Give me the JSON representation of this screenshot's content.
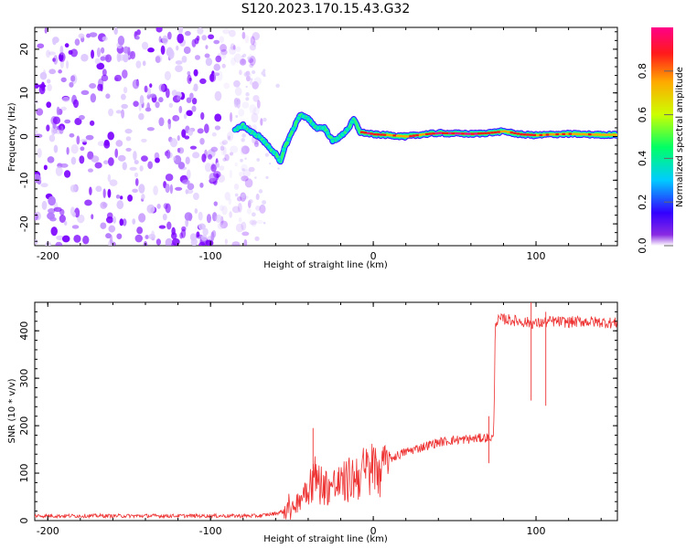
{
  "title": "S120.2023.170.15.43.G32",
  "chart_data": [
    {
      "type": "heatmap",
      "xlabel": "Height of straight line (km)",
      "ylabel": "Frequency (Hz)",
      "xlim": [
        -208,
        150
      ],
      "ylim": [
        -25,
        25
      ],
      "x_ticks": [
        -200,
        -100,
        0,
        100
      ],
      "y_ticks": [
        -20,
        -10,
        0,
        10,
        20
      ],
      "grid": false,
      "colorbar": {
        "label": "Normalized spectral amplitude",
        "range": [
          0.0,
          1.0
        ],
        "ticks": [
          0.0,
          0.2,
          0.4,
          0.6,
          0.8
        ],
        "tick_labels": [
          "0.0",
          "0.2",
          "0.4",
          "0.6",
          "0.8"
        ],
        "colors": [
          "#ffffff",
          "#7b00ff",
          "#0000ff",
          "#00ffff",
          "#00ff00",
          "#ffff00",
          "#ff8000",
          "#ff0000",
          "#ff0080"
        ]
      },
      "ridge": {
        "description_x": [
          -85,
          -80,
          -75,
          -70,
          -65,
          -60,
          -57,
          -55,
          -50,
          -45,
          -40,
          -35,
          -30,
          -25,
          -20,
          -15,
          -12,
          -8,
          0,
          10,
          20,
          30,
          40,
          50,
          60,
          70,
          80,
          90,
          100,
          110,
          120,
          130,
          140,
          150
        ],
        "frequency": [
          1.5,
          2.5,
          1,
          0,
          -2,
          -4,
          -6,
          -3,
          1,
          5,
          4,
          2,
          2,
          -1,
          0,
          2,
          4,
          1,
          0.5,
          0.3,
          0,
          0.5,
          0.8,
          0.7,
          0.6,
          0.8,
          1.2,
          0.5,
          0.3,
          0.5,
          0.6,
          0.5,
          0.4,
          0.4
        ],
        "peak_amplitude": [
          0.3,
          0.35,
          0.3,
          0.3,
          0.3,
          0.35,
          0.4,
          0.35,
          0.3,
          0.4,
          0.4,
          0.3,
          0.3,
          0.3,
          0.3,
          0.4,
          0.5,
          0.8,
          0.9,
          0.75,
          0.7,
          0.8,
          0.85,
          0.9,
          0.9,
          0.85,
          0.75,
          0.8,
          0.8,
          0.75,
          0.75,
          0.7,
          0.7,
          0.7
        ]
      },
      "noise_region": {
        "x_from": -208,
        "x_to": -80,
        "amplitude": [
          0.0,
          0.15
        ]
      }
    },
    {
      "type": "line",
      "xlabel": "Height of straight line (km)",
      "ylabel": "SNR (10 * v/v)",
      "xlim": [
        -208,
        150
      ],
      "ylim": [
        0,
        460
      ],
      "x_ticks": [
        -200,
        -100,
        0,
        100
      ],
      "y_ticks": [
        0,
        100,
        200,
        300,
        400
      ],
      "grid": false,
      "line_color": "#ee3333",
      "series": [
        {
          "x": [
            -208,
            -150,
            -100,
            -70,
            -60,
            -50,
            -45,
            -40,
            -36,
            -30,
            -20,
            -10,
            0,
            10,
            20,
            30,
            40,
            50,
            60,
            70,
            74,
            75,
            80,
            90,
            100,
            110,
            120,
            130,
            140,
            150
          ],
          "values": [
            10,
            10,
            10,
            10,
            15,
            25,
            50,
            80,
            95,
            75,
            80,
            100,
            115,
            130,
            145,
            155,
            165,
            170,
            172,
            175,
            175,
            420,
            425,
            420,
            415,
            420,
            418,
            420,
            418,
            416
          ]
        }
      ]
    }
  ]
}
